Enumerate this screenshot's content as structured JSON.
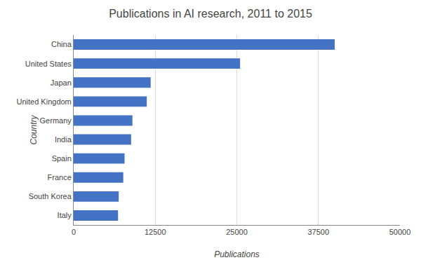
{
  "chart_data": {
    "type": "bar",
    "orientation": "horizontal",
    "title": "Publications in AI research, 2011 to 2015",
    "xlabel": "Publications",
    "ylabel": "Country",
    "categories": [
      "China",
      "United States",
      "Japan",
      "United Kingdom",
      "Germany",
      "India",
      "Spain",
      "France",
      "South Korea",
      "Italy"
    ],
    "values": [
      40000,
      25500,
      11800,
      11200,
      9000,
      8800,
      7800,
      7600,
      6900,
      6800
    ],
    "color": "#4472C4",
    "xlim": [
      0,
      50000
    ],
    "xticks": [
      0,
      12500,
      25000,
      37500,
      50000
    ],
    "grid": true
  }
}
